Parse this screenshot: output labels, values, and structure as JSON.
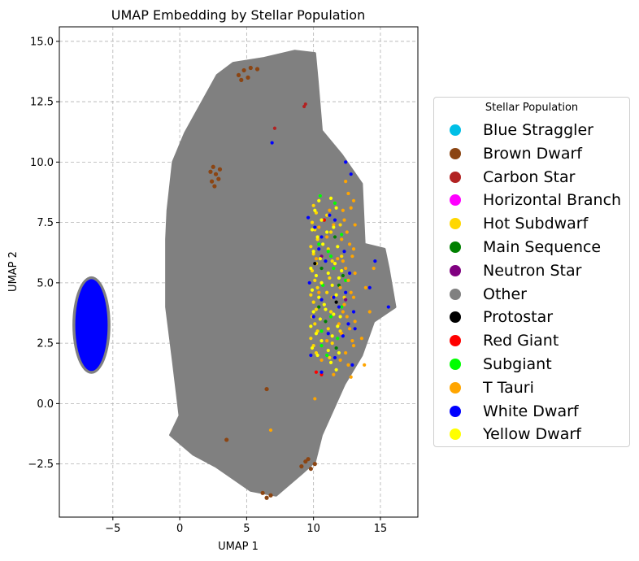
{
  "chart_data": {
    "type": "scatter",
    "title": "UMAP Embedding by Stellar Population",
    "xlabel": "UMAP 1",
    "ylabel": "UMAP 2",
    "xlim": [
      -9.0,
      17.8
    ],
    "ylim": [
      -4.7,
      15.6
    ],
    "xticks": [
      -5,
      0,
      5,
      10,
      15
    ],
    "xtick_labels": [
      "−5",
      "0",
      "5",
      "10",
      "15"
    ],
    "yticks": [
      -2.5,
      0.0,
      2.5,
      5.0,
      7.5,
      10.0,
      12.5,
      15.0
    ],
    "ytick_labels": [
      "−2.5",
      "0.0",
      "2.5",
      "5.0",
      "7.5",
      "10.0",
      "12.5",
      "15.0"
    ],
    "grid": true,
    "legend_title": "Stellar Population",
    "legend_placement": "outside-right",
    "series": [
      {
        "name": "Blue Straggler",
        "color": "#00bfe6",
        "points": []
      },
      {
        "name": "Brown Dwarf",
        "color": "#8b4513",
        "points": [
          [
            4.4,
            13.6
          ],
          [
            4.8,
            13.8
          ],
          [
            5.3,
            13.9
          ],
          [
            5.8,
            13.85
          ],
          [
            4.6,
            13.4
          ],
          [
            5.1,
            13.5
          ],
          [
            2.5,
            9.8
          ],
          [
            2.7,
            9.5
          ],
          [
            2.9,
            9.3
          ],
          [
            2.6,
            9.0
          ],
          [
            2.3,
            9.6
          ],
          [
            3.0,
            9.7
          ],
          [
            2.4,
            9.2
          ],
          [
            6.8,
            -3.8
          ],
          [
            6.2,
            -3.7
          ],
          [
            6.5,
            -3.9
          ],
          [
            9.1,
            -2.6
          ],
          [
            9.4,
            -2.4
          ],
          [
            9.8,
            -2.7
          ],
          [
            10.1,
            -2.5
          ],
          [
            9.6,
            -2.3
          ],
          [
            3.5,
            -1.5
          ],
          [
            6.5,
            0.6
          ]
        ]
      },
      {
        "name": "Carbon Star",
        "color": "#b22222",
        "points": [
          [
            9.4,
            12.4
          ],
          [
            9.3,
            12.3
          ],
          [
            7.1,
            11.4
          ]
        ]
      },
      {
        "name": "Horizontal Branch",
        "color": "#ff00ff",
        "points": []
      },
      {
        "name": "Hot Subdwarf",
        "color": "#ffd700",
        "points": [
          [
            10.0,
            8.2
          ],
          [
            10.2,
            7.9
          ],
          [
            9.9,
            7.5
          ],
          [
            10.1,
            7.2
          ],
          [
            10.3,
            6.8
          ],
          [
            9.8,
            6.5
          ],
          [
            10.0,
            6.2
          ],
          [
            10.2,
            5.8
          ],
          [
            9.9,
            5.5
          ],
          [
            10.1,
            5.1
          ],
          [
            10.3,
            4.8
          ],
          [
            9.8,
            4.5
          ],
          [
            10.0,
            4.2
          ],
          [
            10.2,
            3.9
          ],
          [
            9.9,
            3.6
          ],
          [
            10.1,
            3.3
          ],
          [
            10.3,
            3.0
          ],
          [
            9.8,
            2.7
          ],
          [
            10.0,
            2.4
          ],
          [
            10.2,
            2.1
          ],
          [
            11.0,
            7.8
          ],
          [
            11.3,
            7.1
          ],
          [
            11.1,
            6.4
          ],
          [
            11.4,
            5.9
          ],
          [
            11.2,
            5.2
          ],
          [
            11.0,
            4.6
          ],
          [
            11.3,
            3.8
          ],
          [
            11.1,
            3.1
          ],
          [
            11.4,
            2.5
          ],
          [
            11.2,
            1.9
          ],
          [
            12.0,
            7.4
          ],
          [
            12.1,
            6.1
          ],
          [
            12.3,
            4.4
          ],
          [
            12.0,
            3.0
          ]
        ]
      },
      {
        "name": "Main Sequence",
        "color": "#008000",
        "points": [
          [
            10.8,
            7.6
          ],
          [
            11.6,
            6.9
          ],
          [
            10.6,
            5.6
          ],
          [
            11.9,
            4.9
          ],
          [
            10.9,
            3.4
          ],
          [
            11.7,
            2.3
          ],
          [
            12.2,
            5.3
          ],
          [
            10.4,
            4.0
          ]
        ]
      },
      {
        "name": "Neutron Star",
        "color": "#800080",
        "points": [
          [
            12.4,
            4.3
          ],
          [
            10.6,
            6.1
          ]
        ]
      },
      {
        "name": "Other",
        "color": "#808080",
        "points": [
          [
            -6.6,
            5.1
          ],
          [
            -7.7,
            4.5
          ],
          [
            -7.9,
            3.0
          ],
          [
            -7.4,
            1.6
          ],
          [
            -6.2,
            1.4
          ],
          [
            -5.5,
            2.6
          ],
          [
            -5.6,
            4.6
          ],
          [
            -0.7,
            -1.3
          ],
          [
            0.0,
            -0.5
          ],
          [
            -0.5,
            1.8
          ],
          [
            -1.0,
            4.0
          ],
          [
            -1.0,
            6.8
          ],
          [
            -0.9,
            8.0
          ],
          [
            -0.5,
            10.0
          ],
          [
            0.4,
            11.2
          ],
          [
            1.8,
            12.6
          ],
          [
            2.8,
            13.6
          ],
          [
            4.0,
            14.1
          ],
          [
            6.3,
            14.3
          ],
          [
            8.6,
            14.6
          ],
          [
            10.1,
            14.5
          ],
          [
            10.3,
            13.3
          ],
          [
            10.6,
            11.3
          ],
          [
            12.1,
            10.3
          ],
          [
            13.6,
            9.1
          ],
          [
            13.8,
            6.6
          ],
          [
            15.3,
            6.4
          ],
          [
            15.6,
            5.6
          ],
          [
            16.1,
            4.0
          ],
          [
            14.5,
            3.4
          ],
          [
            13.6,
            2.0
          ],
          [
            12.3,
            0.8
          ],
          [
            10.6,
            -1.3
          ],
          [
            10.1,
            -2.4
          ],
          [
            9.1,
            -2.9
          ],
          [
            7.2,
            -3.8
          ],
          [
            5.3,
            -3.6
          ],
          [
            2.7,
            -2.6
          ],
          [
            1.0,
            -2.1
          ],
          [
            3.0,
            2.0
          ],
          [
            3.0,
            5.0
          ],
          [
            3.0,
            8.0
          ],
          [
            6.0,
            3.0
          ],
          [
            6.0,
            6.0
          ],
          [
            6.0,
            9.0
          ],
          [
            6.0,
            12.0
          ],
          [
            8.0,
            0.0
          ],
          [
            8.0,
            4.0
          ],
          [
            8.0,
            8.0
          ],
          [
            4.5,
            11.0
          ],
          [
            2.0,
            -0.5
          ],
          [
            7.0,
            -2.0
          ]
        ]
      },
      {
        "name": "Protostar",
        "color": "#000000",
        "points": [
          [
            10.1,
            5.8
          ],
          [
            11.7,
            4.2
          ]
        ]
      },
      {
        "name": "Red Giant",
        "color": "#ff0000",
        "points": [
          [
            10.6,
            1.2
          ],
          [
            10.2,
            1.3
          ],
          [
            10.8,
            7.6
          ]
        ]
      },
      {
        "name": "Subgiant",
        "color": "#00ff00",
        "points": [
          [
            10.5,
            8.6
          ],
          [
            11.6,
            8.3
          ],
          [
            10.4,
            6.6
          ],
          [
            11.1,
            6.3
          ],
          [
            12.1,
            7.0
          ],
          [
            11.5,
            5.6
          ],
          [
            12.4,
            5.1
          ],
          [
            10.7,
            4.9
          ],
          [
            12.1,
            4.0
          ],
          [
            11.3,
            3.6
          ],
          [
            10.6,
            3.0
          ],
          [
            11.8,
            2.7
          ],
          [
            11.0,
            2.0
          ],
          [
            10.6,
            2.4
          ],
          [
            11.3,
            6.1
          ]
        ]
      },
      {
        "name": "T Tauri",
        "color": "#ffa500",
        "points": [
          [
            12.4,
            9.2
          ],
          [
            12.6,
            8.7
          ],
          [
            12.8,
            8.1
          ],
          [
            12.3,
            7.6
          ],
          [
            12.5,
            7.1
          ],
          [
            12.7,
            6.6
          ],
          [
            12.9,
            6.1
          ],
          [
            12.4,
            5.6
          ],
          [
            12.6,
            5.1
          ],
          [
            12.8,
            4.6
          ],
          [
            12.3,
            4.1
          ],
          [
            12.5,
            3.6
          ],
          [
            12.7,
            3.1
          ],
          [
            12.9,
            2.6
          ],
          [
            12.4,
            2.1
          ],
          [
            12.6,
            1.6
          ],
          [
            12.8,
            1.1
          ],
          [
            13.0,
            8.4
          ],
          [
            13.1,
            7.4
          ],
          [
            13.0,
            6.4
          ],
          [
            13.1,
            5.4
          ],
          [
            13.0,
            4.4
          ],
          [
            13.1,
            3.4
          ],
          [
            13.0,
            2.4
          ],
          [
            12.2,
            8.0
          ],
          [
            12.1,
            6.8
          ],
          [
            12.2,
            5.9
          ],
          [
            12.0,
            4.8
          ],
          [
            12.2,
            3.8
          ],
          [
            12.1,
            2.9
          ],
          [
            12.0,
            1.8
          ],
          [
            11.2,
            8.0
          ],
          [
            11.5,
            7.4
          ],
          [
            11.0,
            6.9
          ],
          [
            11.8,
            6.0
          ],
          [
            11.4,
            4.4
          ],
          [
            11.9,
            3.3
          ],
          [
            11.0,
            2.6
          ],
          [
            10.6,
            1.8
          ],
          [
            11.5,
            1.2
          ],
          [
            10.1,
            0.2
          ],
          [
            14.2,
            3.8
          ],
          [
            14.5,
            5.6
          ],
          [
            13.9,
            4.8
          ],
          [
            13.6,
            2.7
          ],
          [
            13.8,
            1.6
          ],
          [
            6.8,
            -1.1
          ],
          [
            10.4,
            4.6
          ],
          [
            10.2,
            6.0
          ],
          [
            10.4,
            7.3
          ]
        ]
      },
      {
        "name": "White Dwarf",
        "color": "#0000ff",
        "points": [
          [
            -6.8,
            4.7
          ],
          [
            -7.2,
            4.0
          ],
          [
            -7.4,
            3.2
          ],
          [
            -7.1,
            2.3
          ],
          [
            -6.6,
            1.7
          ],
          [
            -6.0,
            2.0
          ],
          [
            -5.7,
            2.8
          ],
          [
            -5.8,
            3.8
          ],
          [
            -6.1,
            4.6
          ],
          [
            -6.5,
            3.4
          ],
          [
            -6.8,
            2.6
          ],
          [
            -6.3,
            4.0
          ],
          [
            -6.9,
            3.8
          ],
          [
            -6.2,
            3.0
          ],
          [
            -6.6,
            2.1
          ],
          [
            -7.0,
            4.4
          ],
          [
            -5.9,
            3.3
          ],
          [
            -6.4,
            1.6
          ],
          [
            6.9,
            10.8
          ],
          [
            12.4,
            10.0
          ],
          [
            12.8,
            9.5
          ],
          [
            9.6,
            7.7
          ],
          [
            11.2,
            7.8
          ],
          [
            11.6,
            7.6
          ],
          [
            10.1,
            7.3
          ],
          [
            10.6,
            6.9
          ],
          [
            10.4,
            6.4
          ],
          [
            12.3,
            6.3
          ],
          [
            10.9,
            5.9
          ],
          [
            12.7,
            5.4
          ],
          [
            14.6,
            5.9
          ],
          [
            9.7,
            5.0
          ],
          [
            10.6,
            4.3
          ],
          [
            11.5,
            4.4
          ],
          [
            12.4,
            4.6
          ],
          [
            14.2,
            4.8
          ],
          [
            15.6,
            4.0
          ],
          [
            10.0,
            3.6
          ],
          [
            11.9,
            4.0
          ],
          [
            13.0,
            3.8
          ],
          [
            12.6,
            3.3
          ],
          [
            11.1,
            2.9
          ],
          [
            12.2,
            2.8
          ],
          [
            9.8,
            2.0
          ],
          [
            11.6,
            1.9
          ],
          [
            12.9,
            1.6
          ],
          [
            10.6,
            1.3
          ],
          [
            13.1,
            3.1
          ]
        ]
      },
      {
        "name": "Yellow Dwarf",
        "color": "#ffff00",
        "points": [
          [
            10.4,
            8.4
          ],
          [
            10.1,
            8.0
          ],
          [
            10.6,
            7.6
          ],
          [
            9.9,
            7.2
          ],
          [
            10.3,
            6.9
          ],
          [
            10.7,
            6.6
          ],
          [
            10.0,
            6.3
          ],
          [
            10.5,
            6.0
          ],
          [
            9.8,
            5.6
          ],
          [
            10.2,
            5.3
          ],
          [
            10.6,
            5.0
          ],
          [
            9.9,
            4.7
          ],
          [
            10.4,
            4.4
          ],
          [
            10.8,
            4.1
          ],
          [
            10.0,
            3.8
          ],
          [
            10.5,
            3.5
          ],
          [
            9.8,
            3.2
          ],
          [
            10.2,
            2.9
          ],
          [
            10.6,
            2.6
          ],
          [
            9.9,
            2.3
          ],
          [
            10.3,
            2.0
          ],
          [
            11.3,
            8.5
          ],
          [
            11.7,
            8.1
          ],
          [
            11.5,
            7.3
          ],
          [
            11.8,
            6.5
          ],
          [
            11.6,
            5.8
          ],
          [
            11.9,
            5.2
          ],
          [
            11.4,
            4.9
          ],
          [
            11.7,
            4.5
          ],
          [
            11.5,
            3.7
          ],
          [
            11.8,
            3.2
          ],
          [
            11.4,
            2.8
          ],
          [
            11.9,
            2.1
          ],
          [
            11.3,
            1.7
          ],
          [
            11.7,
            1.4
          ],
          [
            12.0,
            3.6
          ],
          [
            11.0,
            7.1
          ],
          [
            11.1,
            5.4
          ],
          [
            10.9,
            3.9
          ],
          [
            11.1,
            2.2
          ],
          [
            12.1,
            5.5
          ]
        ]
      }
    ]
  }
}
